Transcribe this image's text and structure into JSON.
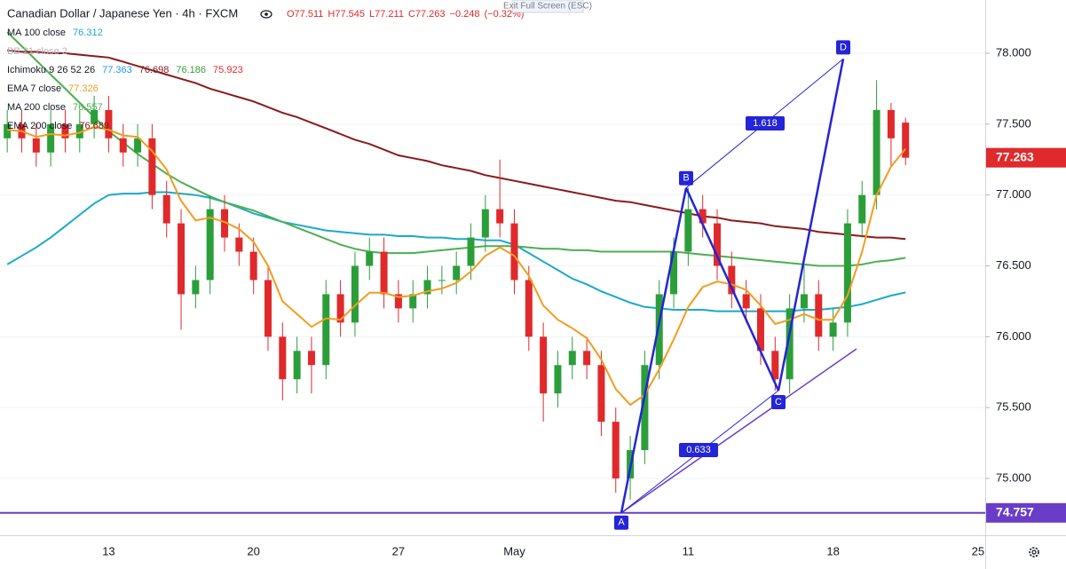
{
  "chart_data": {
    "type": "candlestick",
    "title": "Canadian Dollar / Japanese Yen · 4h · FXCM",
    "notice": "Exit Full Screen (ESC)",
    "quote": [
      {
        "value": 77.511,
        "label": "O77.511"
      },
      {
        "value": 77.545,
        "label": "H77.545"
      },
      {
        "value": 77.211,
        "label": "L77.211"
      },
      {
        "value": 77.263,
        "label": "C77.263"
      },
      {
        "value": -0.248,
        "label": "−0.248"
      },
      {
        "value": -0.32,
        "label": "(−0.32%)"
      }
    ],
    "quote_color": "#e0292b",
    "categories": [
      null,
      null,
      null,
      null,
      null,
      null,
      null,
      "13",
      null,
      null,
      null,
      null,
      null,
      null,
      null,
      null,
      null,
      "20",
      null,
      null,
      null,
      null,
      null,
      null,
      null,
      null,
      null,
      "27",
      null,
      null,
      null,
      null,
      null,
      null,
      null,
      "May",
      null,
      null,
      null,
      null,
      null,
      null,
      null,
      null,
      null,
      null,
      null,
      "11",
      null,
      null,
      null,
      null,
      null,
      null,
      null,
      null,
      null,
      "18",
      null,
      null,
      null,
      null,
      null,
      null,
      null,
      null,
      null,
      "25"
    ],
    "open": [
      77.4,
      77.5,
      77.4,
      77.3,
      77.5,
      77.4,
      77.5,
      77.6,
      77.4,
      77.3,
      77.4,
      77.0,
      76.8,
      76.3,
      76.4,
      76.9,
      76.7,
      76.6,
      76.4,
      76.0,
      75.7,
      75.9,
      75.8,
      76.3,
      76.1,
      76.5,
      76.6,
      76.3,
      76.2,
      76.3,
      76.4,
      76.4,
      76.5,
      76.7,
      76.9,
      76.8,
      76.4,
      76.0,
      75.6,
      75.8,
      75.9,
      75.8,
      75.4,
      75.0,
      75.2,
      75.8,
      76.3,
      76.6,
      76.9,
      76.8,
      76.5,
      76.3,
      76.2,
      75.9,
      75.7,
      76.2,
      76.3,
      76.0,
      76.1,
      76.8,
      77.0,
      77.6,
      77.511,
      null,
      null,
      null,
      null,
      null
    ],
    "high": [
      77.6,
      77.6,
      77.5,
      77.6,
      77.6,
      77.6,
      77.7,
      77.7,
      77.5,
      77.5,
      77.5,
      77.1,
      76.9,
      76.5,
      77.0,
      77.0,
      76.8,
      76.7,
      76.5,
      76.1,
      76.0,
      76.0,
      76.4,
      76.4,
      76.6,
      76.7,
      76.7,
      76.4,
      76.4,
      76.5,
      76.5,
      76.6,
      76.8,
      77.0,
      77.25,
      76.9,
      76.5,
      76.1,
      75.9,
      76.0,
      76.0,
      75.9,
      75.5,
      75.3,
      75.9,
      76.4,
      76.7,
      77.05,
      77.0,
      76.9,
      76.6,
      76.4,
      76.3,
      76.0,
      76.3,
      76.5,
      76.4,
      76.2,
      76.9,
      77.1,
      77.81,
      77.65,
      77.545,
      null,
      null,
      null,
      null,
      null
    ],
    "low": [
      77.3,
      77.3,
      77.2,
      77.2,
      77.3,
      77.3,
      77.4,
      77.3,
      77.2,
      77.2,
      76.9,
      76.7,
      76.05,
      76.2,
      76.3,
      76.6,
      76.5,
      76.3,
      75.9,
      75.55,
      75.6,
      75.6,
      75.7,
      76.0,
      76.0,
      76.4,
      76.2,
      76.1,
      76.1,
      76.2,
      76.3,
      76.3,
      76.4,
      76.6,
      76.7,
      76.3,
      75.9,
      75.4,
      75.5,
      75.7,
      75.7,
      75.3,
      74.9,
      74.85,
      75.1,
      75.7,
      76.2,
      76.5,
      76.7,
      76.4,
      76.2,
      76.1,
      75.8,
      75.62,
      75.6,
      76.1,
      75.9,
      75.9,
      76.0,
      76.7,
      76.9,
      77.2,
      77.211,
      null,
      null,
      null,
      null,
      null
    ],
    "close": [
      77.5,
      77.4,
      77.3,
      77.5,
      77.4,
      77.5,
      77.6,
      77.4,
      77.3,
      77.4,
      77.0,
      76.8,
      76.3,
      76.4,
      76.9,
      76.7,
      76.6,
      76.4,
      76.0,
      75.7,
      75.9,
      75.8,
      76.3,
      76.1,
      76.5,
      76.6,
      76.3,
      76.2,
      76.3,
      76.4,
      76.4,
      76.5,
      76.7,
      76.9,
      76.8,
      76.4,
      76.0,
      75.6,
      75.8,
      75.9,
      75.8,
      75.4,
      75.0,
      75.2,
      75.8,
      76.3,
      76.6,
      76.9,
      76.8,
      76.5,
      76.3,
      76.2,
      75.9,
      75.7,
      76.2,
      76.3,
      76.0,
      76.1,
      76.8,
      77.0,
      77.6,
      77.4,
      77.263,
      null,
      null,
      null,
      null,
      null
    ],
    "up_color": "#2b9e3a",
    "down_color": "#e0292b",
    "ylim": [
      74.599,
      78.376
    ],
    "yticks": [
      {
        "value": 75.0,
        "label": "75.000"
      },
      {
        "value": 75.5,
        "label": "75.500"
      },
      {
        "value": 76.0,
        "label": "76.000"
      },
      {
        "value": 76.5,
        "label": "76.500"
      },
      {
        "value": 77.0,
        "label": "77.000"
      },
      {
        "value": 77.5,
        "label": "77.500"
      },
      {
        "value": 78.0,
        "label": "78.000"
      }
    ],
    "overlays": [
      {
        "name": "MA 100 close",
        "color": "#1ba9c9",
        "last": 76.312,
        "values": [
          76.51,
          76.57,
          76.63,
          76.7,
          76.78,
          76.86,
          76.94,
          77.0,
          77.01,
          77.01,
          77.02,
          77.02,
          77.01,
          77.0,
          76.98,
          76.95,
          76.91,
          76.87,
          76.84,
          76.81,
          76.79,
          76.77,
          76.75,
          76.74,
          76.73,
          76.72,
          76.72,
          76.71,
          76.71,
          76.7,
          76.7,
          76.69,
          76.69,
          76.68,
          76.68,
          76.65,
          76.59,
          76.53,
          76.47,
          76.41,
          76.37,
          76.32,
          76.28,
          76.24,
          76.21,
          76.2,
          76.19,
          76.19,
          76.19,
          76.18,
          76.18,
          76.18,
          76.18,
          76.18,
          76.18,
          76.19,
          76.19,
          76.2,
          76.21,
          76.23,
          76.26,
          76.29,
          76.312,
          null,
          null,
          null,
          null,
          null
        ]
      },
      {
        "name": "BB 21 close 2",
        "color": "#b2b5be"
      },
      {
        "name": "Ichimoku 9 26 52 26",
        "last": [
          77.363,
          76.698,
          76.186,
          75.923
        ],
        "colors": [
          "#2196f3",
          "#8b1a1a",
          "#3a9a3a",
          "#e0292b"
        ]
      },
      {
        "name": "EMA 7 close",
        "color": "#f39c1f",
        "last": 77.326,
        "values": [
          77.46,
          77.45,
          77.41,
          77.43,
          77.42,
          77.44,
          77.48,
          77.46,
          77.42,
          77.41,
          77.31,
          77.18,
          76.96,
          76.82,
          76.84,
          76.81,
          76.76,
          76.67,
          76.5,
          76.25,
          76.16,
          76.07,
          76.13,
          76.12,
          76.22,
          76.31,
          76.31,
          76.28,
          76.29,
          76.32,
          76.34,
          76.38,
          76.46,
          76.57,
          76.63,
          76.57,
          76.43,
          76.22,
          76.12,
          76.06,
          75.99,
          75.84,
          75.63,
          75.52,
          75.59,
          75.77,
          75.98,
          76.21,
          76.35,
          76.39,
          76.37,
          76.33,
          76.22,
          76.09,
          76.12,
          76.16,
          76.12,
          76.12,
          76.29,
          76.6,
          77.0,
          77.2,
          77.326,
          null,
          null,
          null,
          null,
          null
        ]
      },
      {
        "name": "MA 200 close",
        "color": "#4caf50",
        "last": 76.557,
        "values": [
          78.15,
          78.05,
          77.95,
          77.85,
          77.75,
          77.65,
          77.55,
          77.45,
          77.37,
          77.29,
          77.22,
          77.15,
          77.09,
          77.04,
          76.99,
          76.95,
          76.92,
          76.89,
          76.85,
          76.81,
          76.77,
          76.73,
          76.69,
          76.65,
          76.62,
          76.6,
          76.59,
          76.59,
          76.59,
          76.6,
          76.61,
          76.62,
          76.63,
          76.64,
          76.64,
          76.64,
          76.63,
          76.62,
          76.62,
          76.61,
          76.61,
          76.6,
          76.6,
          76.6,
          76.6,
          76.6,
          76.6,
          76.59,
          76.58,
          76.57,
          76.56,
          76.55,
          76.54,
          76.53,
          76.52,
          76.51,
          76.5,
          76.5,
          76.5,
          76.51,
          76.53,
          76.54,
          76.557,
          null,
          null,
          null,
          null,
          null
        ]
      },
      {
        "name": "EMA 200 close",
        "color": "#8b1a1a",
        "last": 76.689,
        "values": [
          78.02,
          78.01,
          78.01,
          78.0,
          78.0,
          77.99,
          77.98,
          77.97,
          77.94,
          77.91,
          77.88,
          77.85,
          77.82,
          77.79,
          77.75,
          77.72,
          77.69,
          77.66,
          77.62,
          77.58,
          77.55,
          77.51,
          77.47,
          77.43,
          77.39,
          77.36,
          77.32,
          77.28,
          77.26,
          77.24,
          77.21,
          77.19,
          77.17,
          77.14,
          77.12,
          77.1,
          77.08,
          77.06,
          77.04,
          77.02,
          77.0,
          76.98,
          76.96,
          76.95,
          76.93,
          76.91,
          76.89,
          76.87,
          76.85,
          76.84,
          76.82,
          76.81,
          76.8,
          76.78,
          76.77,
          76.76,
          76.74,
          76.73,
          76.72,
          76.71,
          76.7,
          76.7,
          76.689,
          null,
          null,
          null,
          null,
          null
        ]
      }
    ],
    "pattern": {
      "color": "#2424d8",
      "points": [
        {
          "label": "A",
          "value": 74.757
        },
        {
          "label": "B",
          "value": 77.05
        },
        {
          "label": "C",
          "value": 75.62
        },
        {
          "label": "D",
          "value": 77.96
        }
      ],
      "ratios": [
        1.618,
        0.633
      ]
    },
    "level": {
      "value": 74.757,
      "color": "#6a3dc8"
    },
    "last_price": 77.263,
    "last_price_color": "#e0292b"
  }
}
